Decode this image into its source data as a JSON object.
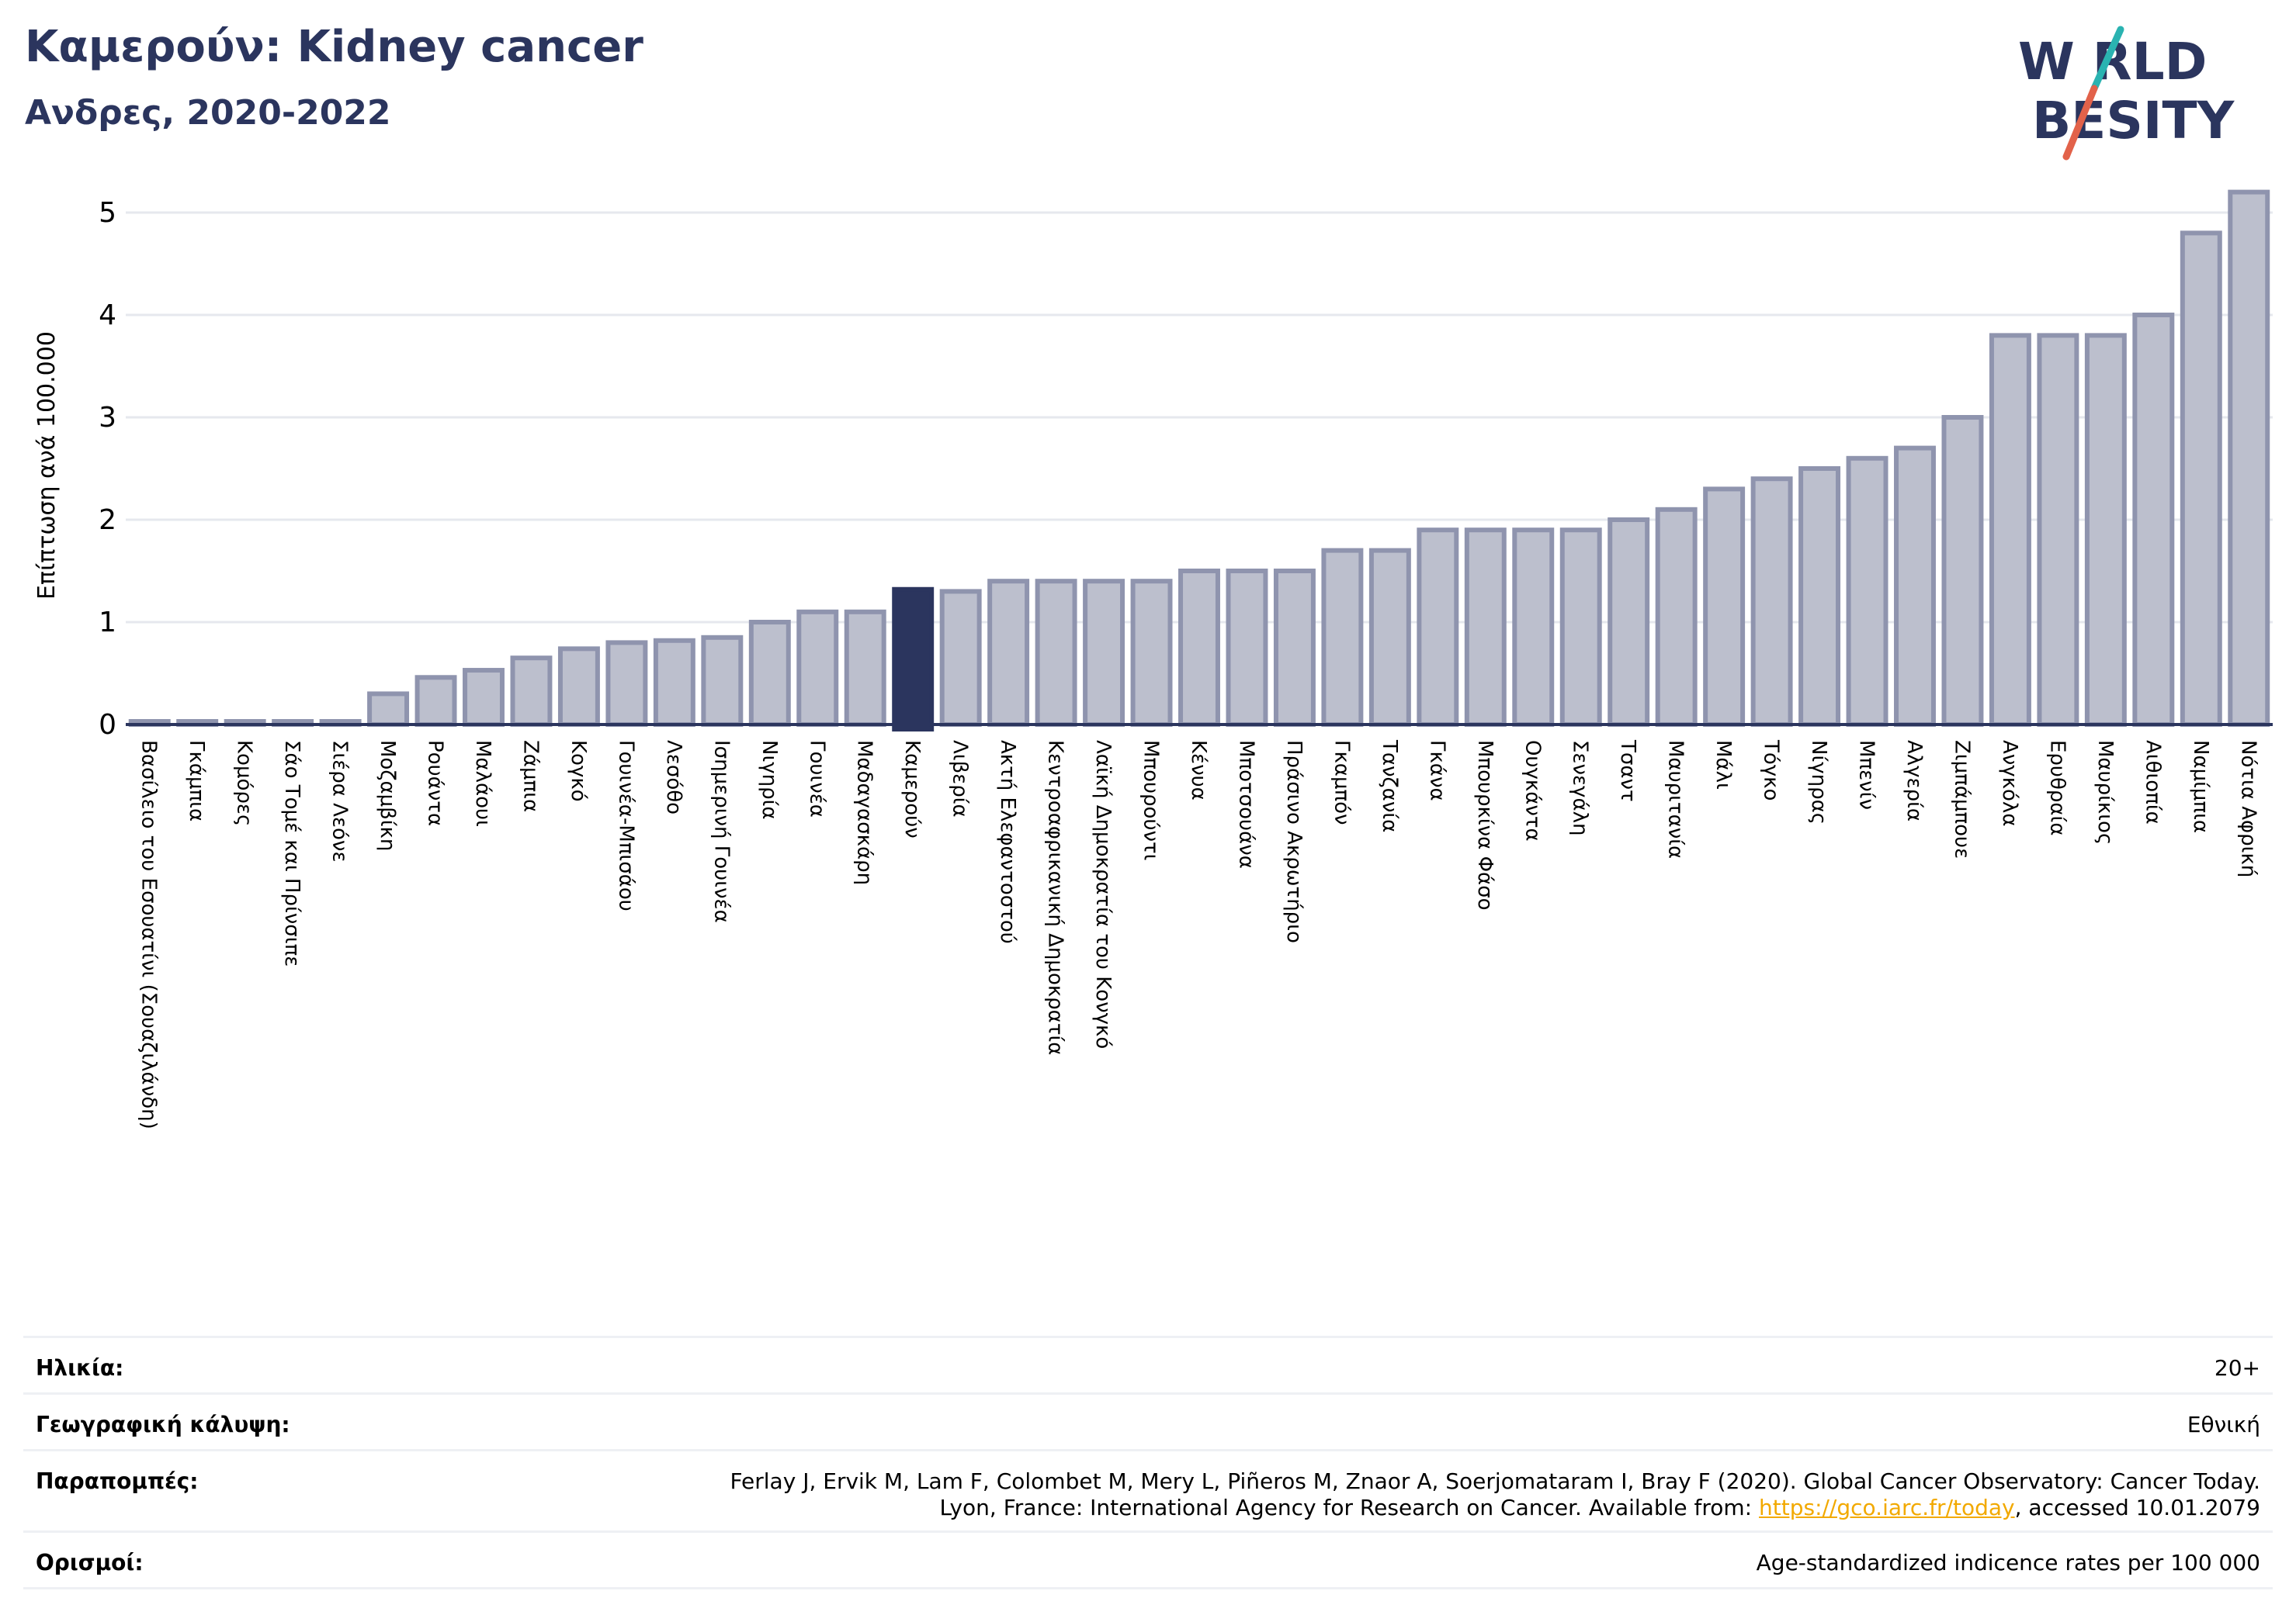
{
  "header": {
    "title": "Καμερούν: Kidney cancer",
    "subtitle": "Ανδρες, 2020-2022"
  },
  "logo": {
    "line1": "W RLD",
    "line2": "BESITY",
    "colors": {
      "text": "#2b355e",
      "slash_top": "#2ab3b1",
      "slash_bottom": "#e2624a"
    }
  },
  "colors": {
    "highlight_bar": "#2b355e",
    "bar_fill": "#bcbfcd",
    "bar_stroke": "#8f94ae",
    "grid": "#e6e8ee",
    "axis": "#2b355e"
  },
  "chart_data": {
    "type": "bar",
    "title": "",
    "ylabel": "Επίπτωση ανά 100.000",
    "ylim": [
      0,
      5.2
    ],
    "yticks": [
      0,
      1,
      2,
      3,
      4,
      5
    ],
    "grid": true,
    "highlight": "Καμερούν",
    "categories": [
      "Βασίλειο του Εσουατίνι (Σουαζιλάνδη)",
      "Γκάμπια",
      "Κομόρες",
      "Σάο Τομέ και Πρίνσιπε",
      "Σιέρα Λεόνε",
      "Μοζαμβίκη",
      "Ρουάντα",
      "Μαλάουι",
      "Ζάμπια",
      "Κογκό",
      "Γουινέα-Μπισάου",
      "Λεσόθο",
      "Ισημερινή Γουινέα",
      "Νιγηρία",
      "Γουινέα",
      "Μαδαγασκάρη",
      "Καμερούν",
      "Λιβερία",
      "Ακτή Ελεφαντοστού",
      "Κεντροαφρικανική Δημοκρατία",
      "Λαϊκή Δημοκρατία του Κονγκό",
      "Μπουρούντι",
      "Κένυα",
      "Μποτσουάνα",
      "Πράσινο Ακρωτήριο",
      "Γκαμπόν",
      "Τανζανία",
      "Γκάνα",
      "Μπουρκίνα Φάσο",
      "Ουγκάντα",
      "Σενεγάλη",
      "Τσαντ",
      "Μαυριτανία",
      "Μάλι",
      "Τόγκο",
      "Νίγηρας",
      "Μπενίν",
      "Αλγερία",
      "Ζιμπάμπουε",
      "Ανγκόλα",
      "Ερυθραία",
      "Μαυρίκιος",
      "Αιθιοπία",
      "Ναμίμπια",
      "Νότια Αφρική"
    ],
    "values": [
      0.0,
      0.0,
      0.0,
      0.0,
      0.0,
      0.3,
      0.46,
      0.53,
      0.65,
      0.74,
      0.8,
      0.82,
      0.85,
      1.0,
      1.1,
      1.1,
      1.32,
      1.3,
      1.4,
      1.4,
      1.4,
      1.4,
      1.5,
      1.5,
      1.5,
      1.7,
      1.7,
      1.9,
      1.9,
      1.9,
      1.9,
      2.0,
      2.1,
      2.3,
      2.4,
      2.5,
      2.6,
      2.7,
      3.0,
      3.8,
      3.8,
      3.8,
      4.0,
      4.8,
      5.2
    ]
  },
  "info": {
    "age_label": "Ηλικία:",
    "age_value": "20+",
    "coverage_label": "Γεωγραφική κάλυψη:",
    "coverage_value": "Εθνική",
    "refs_label": "Παραπομπές:",
    "refs_line1": "Ferlay J, Ervik M, Lam F, Colombet M, Mery L, Piñeros M, Znaor A, Soerjomataram I, Bray F (2020). Global Cancer Observatory: Cancer Today.",
    "refs_line2_prefix": "Lyon, France: International Agency for Research on Cancer. Available from: ",
    "refs_link": "https://gco.iarc.fr/today",
    "refs_line2_suffix": ", accessed 10.01.2079",
    "defs_label": "Ορισμοί:",
    "defs_value": "Age-standardized indicence rates per 100 000"
  }
}
